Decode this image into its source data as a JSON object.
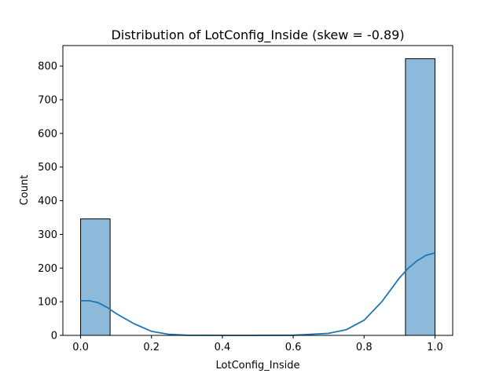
{
  "chart_data": {
    "type": "bar",
    "title": "Distribution of LotConfig_Inside (skew = -0.89)",
    "xlabel": "LotConfig_Inside",
    "ylabel": "Count",
    "xlim": [
      -0.05,
      1.05
    ],
    "ylim": [
      0,
      861
    ],
    "x_ticks": [
      0.0,
      0.2,
      0.4,
      0.6,
      0.8,
      1.0
    ],
    "x_tick_labels": [
      "0.0",
      "0.2",
      "0.4",
      "0.6",
      "0.8",
      "1.0"
    ],
    "y_ticks": [
      0,
      100,
      200,
      300,
      400,
      500,
      600,
      700,
      800
    ],
    "y_tick_labels": [
      "0",
      "100",
      "200",
      "300",
      "400",
      "500",
      "600",
      "700",
      "800"
    ],
    "grid": false,
    "bins": [
      {
        "x0": 0.0,
        "x1": 0.0833,
        "count": 346
      },
      {
        "x0": 0.9167,
        "x1": 1.0,
        "count": 822
      }
    ],
    "kde": {
      "x": [
        0.0,
        0.025,
        0.05,
        0.075,
        0.1,
        0.15,
        0.2,
        0.25,
        0.3,
        0.4,
        0.5,
        0.6,
        0.7,
        0.75,
        0.8,
        0.85,
        0.9,
        0.925,
        0.95,
        0.975,
        1.0
      ],
      "y": [
        103,
        103,
        97,
        83,
        65,
        35,
        12,
        3,
        0.5,
        0,
        0,
        0.5,
        6,
        17,
        45,
        100,
        171,
        200,
        222,
        238,
        245
      ]
    },
    "colors": {
      "bar_fill": "#8dbadb",
      "bar_edge": "#000000",
      "kde_line": "#1f77b4"
    }
  }
}
